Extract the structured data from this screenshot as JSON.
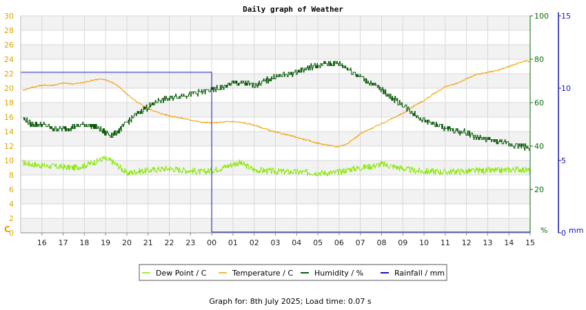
{
  "chart_data": {
    "type": "line",
    "title": "Daily graph of Weather",
    "x_ticks": [
      "16",
      "17",
      "18",
      "19",
      "20",
      "21",
      "22",
      "23",
      "00",
      "01",
      "02",
      "03",
      "04",
      "05",
      "06",
      "07",
      "08",
      "09",
      "10",
      "11",
      "12",
      "13",
      "14",
      "15"
    ],
    "axes": {
      "left": {
        "label": "C",
        "min": 0,
        "max": 30,
        "ticks": [
          0,
          2,
          4,
          6,
          8,
          10,
          12,
          14,
          16,
          18,
          20,
          22,
          24,
          26,
          28,
          30
        ],
        "color": "#e6a100"
      },
      "humidity": {
        "label": "%",
        "min": 0,
        "max": 100,
        "ticks": [
          20,
          40,
          60,
          80,
          100
        ],
        "color": "#0a6a0a"
      },
      "rainfall": {
        "label": "mm",
        "min": 0,
        "max": 15,
        "ticks": [
          0,
          5,
          10,
          15
        ],
        "color": "#1414b4"
      }
    },
    "grid": true,
    "legend_position": "bottom",
    "series": [
      {
        "name": "Dew Point / C",
        "axis": "left",
        "color": "#88e800",
        "noise": 0.45,
        "x": [
          15.1,
          15.5,
          16,
          16.5,
          17,
          17.5,
          18,
          18.5,
          18.9,
          19.3,
          19.7,
          20,
          20.5,
          21,
          21.5,
          22,
          22.5,
          23,
          23.5,
          24,
          24.5,
          25,
          25.3,
          25.6,
          26,
          27,
          28,
          29,
          29.8,
          30,
          30.5,
          31,
          31.5,
          32,
          32.5,
          33,
          33.5,
          34,
          34.5,
          35,
          35.5,
          36,
          36.5,
          37,
          37.5,
          38,
          38.5,
          39
        ],
        "y": [
          9.7,
          9.5,
          9.3,
          9.2,
          9.1,
          9.0,
          9.3,
          9.8,
          10.3,
          9.9,
          9.0,
          8.2,
          8.5,
          8.6,
          8.8,
          8.9,
          8.7,
          8.6,
          8.4,
          8.6,
          9.0,
          9.5,
          9.7,
          9.3,
          8.7,
          8.5,
          8.4,
          8.3,
          8.3,
          8.4,
          8.8,
          9.0,
          9.2,
          9.5,
          9.2,
          8.9,
          8.6,
          8.5,
          8.5,
          8.4,
          8.5,
          8.5,
          8.6,
          8.6,
          8.6,
          8.7,
          8.8,
          8.6
        ]
      },
      {
        "name": "Temperature / C",
        "axis": "left",
        "color": "#f0a000",
        "noise": 0.1,
        "x": [
          15.1,
          15.5,
          16,
          16.5,
          17,
          17.5,
          18,
          18.5,
          19,
          19.5,
          20,
          20.5,
          21,
          21.5,
          22,
          22.5,
          23,
          23.5,
          24,
          24.5,
          25,
          25.5,
          26,
          26.5,
          27,
          27.5,
          28,
          28.5,
          29,
          29.5,
          29.9,
          30.3,
          30.8,
          31,
          31.5,
          32,
          32.5,
          33,
          33.5,
          34,
          34.5,
          35,
          35.5,
          36,
          36.5,
          37,
          37.5,
          38,
          38.5,
          38.8,
          39
        ],
        "y": [
          19.7,
          20.1,
          20.4,
          20.4,
          20.7,
          20.6,
          20.8,
          21.2,
          21.2,
          20.5,
          19.2,
          18.0,
          17.2,
          16.6,
          16.2,
          15.9,
          15.6,
          15.3,
          15.2,
          15.3,
          15.4,
          15.2,
          14.9,
          14.4,
          13.9,
          13.6,
          13.2,
          12.8,
          12.4,
          12.1,
          11.9,
          12.2,
          13.2,
          13.7,
          14.4,
          15.1,
          15.8,
          16.5,
          17.5,
          18.3,
          19.3,
          20.2,
          20.6,
          21.3,
          21.9,
          22.2,
          22.5,
          23.0,
          23.5,
          23.8,
          23.7
        ]
      },
      {
        "name": "Humidity / %",
        "axis": "humidity",
        "color": "#0a5a0a",
        "step": true,
        "noise": 1.3,
        "x": [
          15.1,
          15.5,
          16,
          16.5,
          17,
          17.5,
          18,
          18.5,
          19,
          19.3,
          19.6,
          20,
          20.5,
          21,
          21.5,
          22,
          22.5,
          23,
          23.5,
          24,
          24.5,
          25,
          25.5,
          26,
          26.5,
          27,
          27.5,
          28,
          28.5,
          29,
          29.5,
          30,
          30.5,
          31,
          31.5,
          32,
          32.5,
          33,
          33.5,
          34,
          34.5,
          35,
          35.5,
          36,
          36.5,
          37,
          37.5,
          38,
          38.5,
          39
        ],
        "y": [
          53,
          50,
          50,
          48,
          48,
          49,
          50,
          49,
          46,
          45,
          47,
          51,
          55,
          58,
          61,
          62,
          63,
          64,
          65,
          66,
          67,
          69,
          69,
          68,
          70,
          72,
          73,
          74,
          76,
          77,
          78,
          78,
          75,
          72,
          69,
          66,
          62,
          59,
          55,
          52,
          50,
          48,
          47,
          46,
          44,
          43,
          42,
          41,
          40,
          39
        ]
      },
      {
        "name": "Rainfall / mm",
        "axis": "rainfall",
        "color": "#1414b4",
        "step": true,
        "noise": 0,
        "x": [
          15.0,
          23.99,
          24.0,
          39.0
        ],
        "y": [
          11.1,
          11.1,
          0.05,
          0.05
        ]
      }
    ],
    "footer": "Graph for: 8th July 2025; Load time: 0.07 s"
  }
}
